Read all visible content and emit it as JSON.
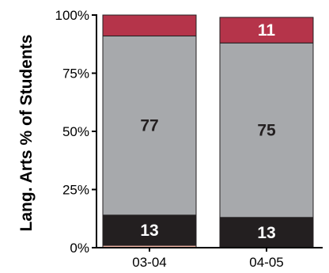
{
  "chart_data": {
    "type": "bar",
    "stacked": true,
    "orientation": "vertical",
    "ylabel": "Lang. Arts % of Students",
    "xlabel": "",
    "title": "",
    "categories": [
      "03-04",
      "04-05"
    ],
    "ylim": [
      0,
      100
    ],
    "yticks": [
      "0%",
      "25%",
      "50%",
      "75%",
      "100%"
    ],
    "ytick_values": [
      0,
      25,
      50,
      75,
      100
    ],
    "grid": false,
    "legend": "none",
    "series": [
      {
        "values": [
          1,
          0
        ],
        "labels": [
          "",
          ""
        ],
        "color": "#f4b8a8",
        "label_color": "#ffffff"
      },
      {
        "values": [
          13,
          13
        ],
        "labels": [
          "13",
          "13"
        ],
        "color": "#231f20",
        "label_color": "#ffffff"
      },
      {
        "values": [
          77,
          75
        ],
        "labels": [
          "77",
          "75"
        ],
        "color": "#a7a9ac",
        "label_color": "#231f20"
      },
      {
        "values": [
          9,
          11
        ],
        "labels": [
          "",
          "11"
        ],
        "color": "#b5344a",
        "label_color": "#ffffff"
      }
    ]
  }
}
